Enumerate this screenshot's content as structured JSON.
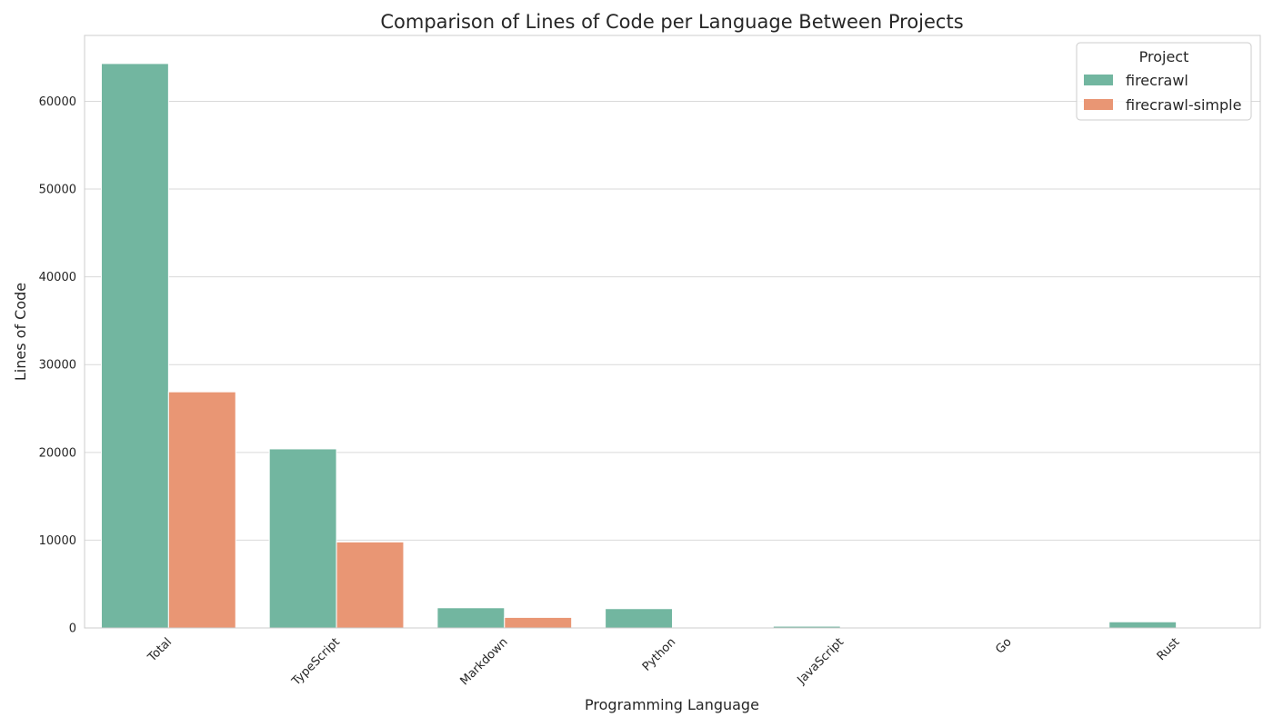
{
  "chart_data": {
    "type": "bar",
    "title": "Comparison of Lines of Code per Language Between Projects",
    "xlabel": "Programming Language",
    "ylabel": "Lines of Code",
    "categories": [
      "Total",
      "TypeScript",
      "Markdown",
      "Python",
      "JavaScript",
      "Go",
      "Rust"
    ],
    "series": [
      {
        "name": "firecrawl",
        "color": "#72b6a0",
        "values": [
          64300,
          20400,
          2300,
          2200,
          200,
          0,
          700
        ]
      },
      {
        "name": "firecrawl-simple",
        "color": "#e99674",
        "values": [
          26900,
          9800,
          1200,
          0,
          0,
          0,
          0
        ]
      }
    ],
    "ylim": [
      0,
      67500
    ],
    "yticks": [
      0,
      10000,
      20000,
      30000,
      40000,
      50000,
      60000
    ],
    "grid": true,
    "legend": {
      "title": "Project",
      "placement": "top-right"
    }
  }
}
